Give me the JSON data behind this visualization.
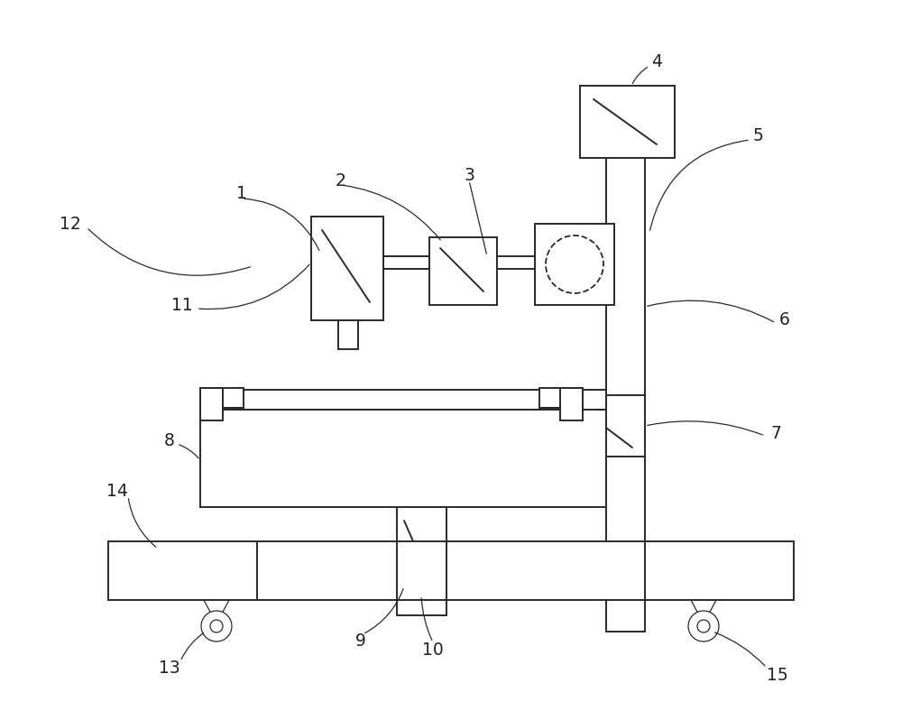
{
  "bg_color": "#ffffff",
  "line_color": "#2a2a2a",
  "lw": 1.4,
  "lw_thin": 0.9,
  "fig_w": 10.0,
  "fig_h": 7.98,
  "dpi": 100
}
